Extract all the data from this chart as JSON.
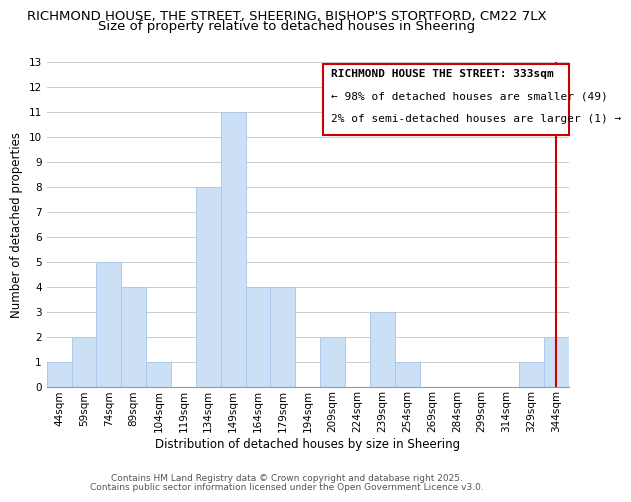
{
  "title": "RICHMOND HOUSE, THE STREET, SHEERING, BISHOP'S STORTFORD, CM22 7LX",
  "subtitle": "Size of property relative to detached houses in Sheering",
  "xlabel": "Distribution of detached houses by size in Sheering",
  "ylabel": "Number of detached properties",
  "bar_labels": [
    "44sqm",
    "59sqm",
    "74sqm",
    "89sqm",
    "104sqm",
    "119sqm",
    "134sqm",
    "149sqm",
    "164sqm",
    "179sqm",
    "194sqm",
    "209sqm",
    "224sqm",
    "239sqm",
    "254sqm",
    "269sqm",
    "284sqm",
    "299sqm",
    "314sqm",
    "329sqm",
    "344sqm"
  ],
  "bar_values": [
    1,
    2,
    5,
    4,
    1,
    0,
    8,
    11,
    4,
    4,
    0,
    2,
    0,
    3,
    1,
    0,
    0,
    0,
    0,
    1,
    2
  ],
  "bar_color": "#cce0f5",
  "bar_edgecolor": "#aac8e8",
  "highlight_index": 20,
  "highlight_line_color": "#cc0000",
  "ylim": [
    0,
    13
  ],
  "yticks": [
    0,
    1,
    2,
    3,
    4,
    5,
    6,
    7,
    8,
    9,
    10,
    11,
    12,
    13
  ],
  "grid_color": "#cccccc",
  "legend_title": "RICHMOND HOUSE THE STREET: 333sqm",
  "legend_line1": "← 98% of detached houses are smaller (49)",
  "legend_line2": "2% of semi-detached houses are larger (1) →",
  "legend_box_color": "#cc0000",
  "footer_line1": "Contains HM Land Registry data © Crown copyright and database right 2025.",
  "footer_line2": "Contains public sector information licensed under the Open Government Licence v3.0.",
  "title_fontsize": 9.5,
  "subtitle_fontsize": 9.5,
  "axis_label_fontsize": 8.5,
  "tick_fontsize": 7.5,
  "legend_fontsize": 8.0,
  "footer_fontsize": 6.5
}
